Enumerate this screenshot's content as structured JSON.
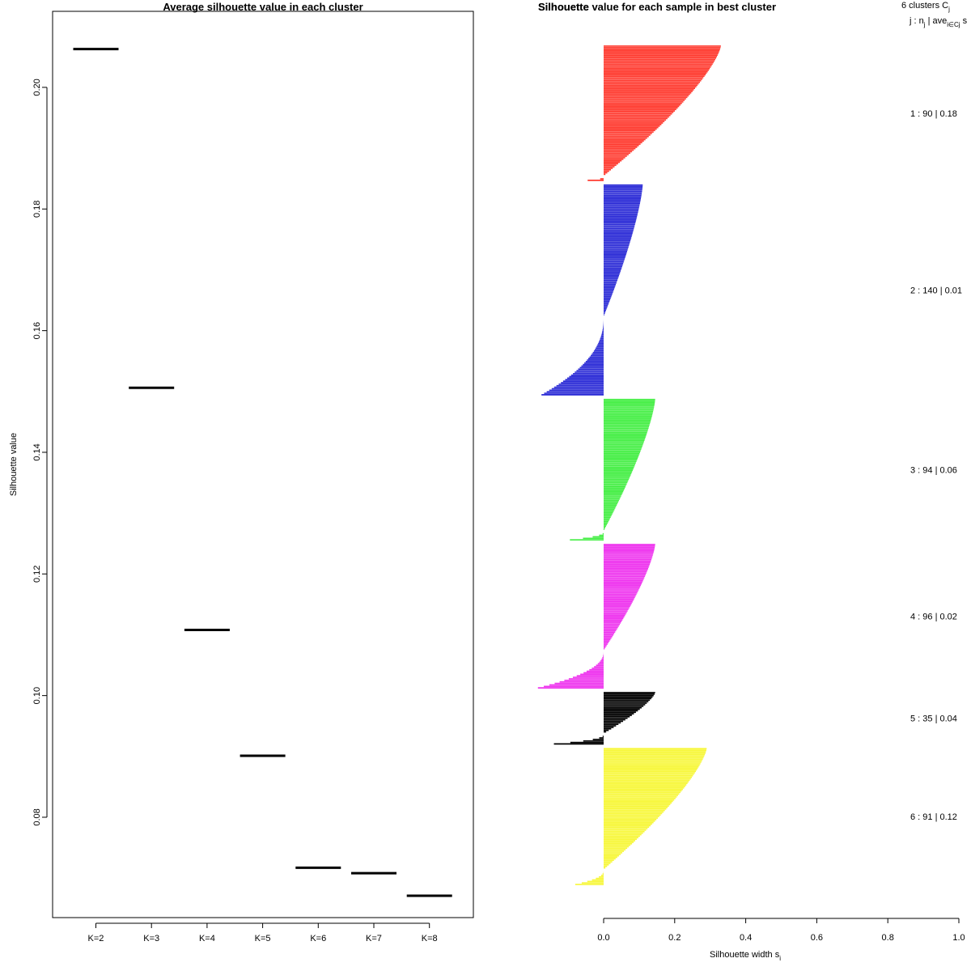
{
  "chart_data": [
    {
      "type": "line",
      "title": "Average silhouette value in each cluster",
      "xlabel": "",
      "ylabel": "Silhouette value",
      "categories": [
        "K=2",
        "K=3",
        "K=4",
        "K=5",
        "K=6",
        "K=7",
        "K=8"
      ],
      "values": [
        0.2063,
        0.1506,
        0.1108,
        0.0901,
        0.0717,
        0.0708,
        0.0671
      ],
      "ylim": [
        0.0635,
        0.2125
      ],
      "yticks": [
        "0.08",
        "0.10",
        "0.12",
        "0.14",
        "0.16",
        "0.18",
        "0.20"
      ],
      "ytick_values": [
        0.08,
        0.1,
        0.12,
        0.14,
        0.16,
        0.18,
        0.2
      ]
    },
    {
      "type": "bar",
      "title": "Silhouette value for each sample in best cluster",
      "overlapped_title": "Silhouette",
      "xlabel": "Silhouette width s",
      "xlabel_sub": "i",
      "xlim": [
        0,
        1
      ],
      "xticks": [
        "0.0",
        "0.2",
        "0.4",
        "0.6",
        "0.8",
        "1.0"
      ],
      "xtick_values": [
        0.0,
        0.2,
        0.4,
        0.6,
        0.8,
        1.0
      ],
      "header": {
        "line1": "6  clusters  C",
        "line1_sub": "j",
        "line2": "j :  n",
        "line2_sub": "j",
        "line2_mid": " | ave",
        "line2_mid_sub": "i∈Cj",
        "line2_end": "  s"
      },
      "clusters": [
        {
          "id": 1,
          "n": 90,
          "color": "#ff3b30",
          "label": "1 :  90  |  0.18",
          "max": 0.33,
          "min": -0.045,
          "n_neg": 3
        },
        {
          "id": 2,
          "n": 140,
          "color": "#2b2bd6",
          "label": "2 :  140  |  0.01",
          "max": 0.11,
          "min": -0.175,
          "n_neg": 52
        },
        {
          "id": 3,
          "n": 94,
          "color": "#44ee44",
          "label": "3 :  94  |  0.06",
          "max": 0.145,
          "min": -0.095,
          "n_neg": 6
        },
        {
          "id": 4,
          "n": 96,
          "color": "#ee33ee",
          "label": "4 :  96  |  0.02",
          "max": 0.145,
          "min": -0.185,
          "n_neg": 25
        },
        {
          "id": 5,
          "n": 35,
          "color": "#000000",
          "label": "5 :  35  |  0.04",
          "max": 0.145,
          "min": -0.14,
          "n_neg": 7
        },
        {
          "id": 6,
          "n": 91,
          "color": "#f7f73a",
          "label": "6 :  91  |  0.12",
          "max": 0.29,
          "min": -0.08,
          "n_neg": 10
        }
      ]
    }
  ]
}
